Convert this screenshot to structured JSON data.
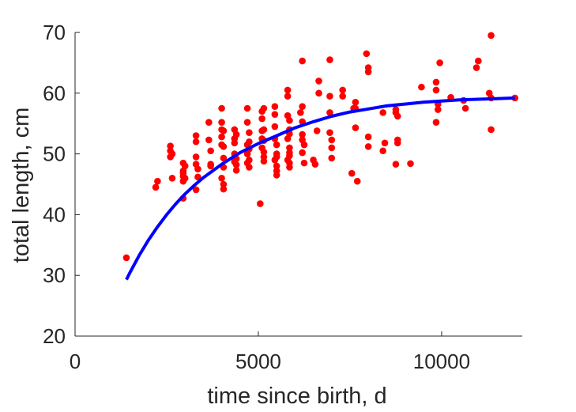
{
  "chart_data": {
    "type": "scatter",
    "title": "",
    "xlabel": "time since birth, d",
    "ylabel": "total length, cm",
    "xlim": [
      0,
      12200
    ],
    "ylim": [
      20,
      70
    ],
    "xticks": [
      0,
      5000,
      10000
    ],
    "xtick_labels": [
      "0",
      "5000",
      "10000"
    ],
    "yticks": [
      20,
      30,
      40,
      50,
      60,
      70
    ],
    "ytick_labels": [
      "20",
      "30",
      "40",
      "50",
      "60",
      "70"
    ],
    "grid": false,
    "colors": {
      "points": "#ff0000",
      "curve": "#0000ff",
      "axis": "#262626"
    },
    "series": [
      {
        "kind": "points",
        "x": [
          1400,
          2200,
          2250,
          2600,
          2600,
          2600,
          2650,
          2650,
          2950,
          2950,
          2950,
          2950,
          2950,
          2950,
          3000,
          3000,
          3300,
          3300,
          3300,
          3300,
          3300,
          3350,
          3350,
          3650,
          3650,
          3700,
          3700,
          3700,
          4000,
          4000,
          4000,
          4000,
          4000,
          4000,
          4050,
          4050,
          4050,
          4050,
          4050,
          4050,
          4350,
          4350,
          4350,
          4350,
          4350,
          4400,
          4400,
          4400,
          4400,
          4700,
          4700,
          4700,
          4700,
          4700,
          4750,
          4750,
          4750,
          4750,
          4750,
          5050,
          5100,
          5100,
          5100,
          5100,
          5100,
          5150,
          5150,
          5150,
          5150,
          5150,
          5150,
          5450,
          5450,
          5450,
          5450,
          5450,
          5500,
          5500,
          5500,
          5500,
          5500,
          5500,
          5800,
          5800,
          5800,
          5800,
          5800,
          5850,
          5850,
          5850,
          5850,
          5850,
          5850,
          5850,
          5850,
          6150,
          6200,
          6200,
          6200,
          6200,
          6200,
          6200,
          6250,
          6250,
          6500,
          6550,
          6600,
          6650,
          6650,
          6950,
          6950,
          6950,
          6950,
          7000,
          7000,
          7000,
          7300,
          7300,
          7550,
          7600,
          7650,
          7650,
          7650,
          7700,
          7950,
          8000,
          8000,
          8000,
          8000,
          8400,
          8400,
          8450,
          8750,
          8750,
          8750,
          8800,
          8800,
          8800,
          9150,
          9450,
          9850,
          9850,
          9850,
          9900,
          9900,
          9950,
          10250,
          10600,
          10650,
          10950,
          11000,
          11300,
          11350,
          11350,
          11350,
          12000
        ],
        "y": [
          32.9,
          44.5,
          45.5,
          51.3,
          50.5,
          49.5,
          46.0,
          50.0,
          48.5,
          47.2,
          46.8,
          46.3,
          45.5,
          42.7,
          48.0,
          46.0,
          53.0,
          52.0,
          49.5,
          48.3,
          44.1,
          47.5,
          46.2,
          55.2,
          52.3,
          50.5,
          48.3,
          48.0,
          57.5,
          55.2,
          54.0,
          52.8,
          51.5,
          46.0,
          53.8,
          51.2,
          49.3,
          47.8,
          45.0,
          44.2,
          54.0,
          52.5,
          51.8,
          50.0,
          48.7,
          53.2,
          49.2,
          48.2,
          47.3,
          57.5,
          55.2,
          51.5,
          50.0,
          48.5,
          53.5,
          52.0,
          50.8,
          49.0,
          47.8,
          41.8,
          57.0,
          55.8,
          53.8,
          52.5,
          51.0,
          57.5,
          54.0,
          50.3,
          49.5,
          48.8,
          52.2,
          57.8,
          56.5,
          54.5,
          52.5,
          49.0,
          51.5,
          50.0,
          49.5,
          48.0,
          47.2,
          46.5,
          60.5,
          59.5,
          56.3,
          52.5,
          49.0,
          55.5,
          54.0,
          53.3,
          51.0,
          50.2,
          49.7,
          48.5,
          47.8,
          56.8,
          65.3,
          57.8,
          55.3,
          53.2,
          52.3,
          50.2,
          51.5,
          48.5,
          49.0,
          48.3,
          53.8,
          62.0,
          60.0,
          65.5,
          59.5,
          56.8,
          53.5,
          52.3,
          51.0,
          49.3,
          60.5,
          59.5,
          46.8,
          57.5,
          58.5,
          57.5,
          54.3,
          45.5,
          66.5,
          64.2,
          63.5,
          52.8,
          51.2,
          50.5,
          56.8,
          51.8,
          48.3,
          57.3,
          56.8,
          56.2,
          52.3,
          51.8,
          48.4,
          61.0,
          55.2,
          61.8,
          60.5,
          58.2,
          57.3,
          65.0,
          59.3,
          58.8,
          57.5,
          64.2,
          65.3,
          60.0,
          59.2,
          54.0,
          69.5,
          59.2
        ]
      },
      {
        "kind": "fit",
        "x": [
          1400,
          1500,
          1750,
          2000,
          2250,
          2500,
          2750,
          3000,
          3250,
          3500,
          4000,
          4500,
          5000,
          5500,
          6000,
          6500,
          7000,
          7500,
          8000,
          8500,
          9000,
          9500,
          10000,
          10500,
          11000,
          11500,
          12000
        ],
        "y": [
          29.3,
          30.5,
          33.3,
          35.8,
          38.0,
          40.0,
          41.8,
          43.4,
          44.8,
          46.1,
          48.3,
          50.2,
          51.7,
          53.0,
          54.3,
          55.3,
          56.2,
          56.9,
          57.4,
          57.9,
          58.2,
          58.5,
          58.7,
          58.9,
          59.0,
          59.1,
          59.2
        ]
      }
    ]
  }
}
